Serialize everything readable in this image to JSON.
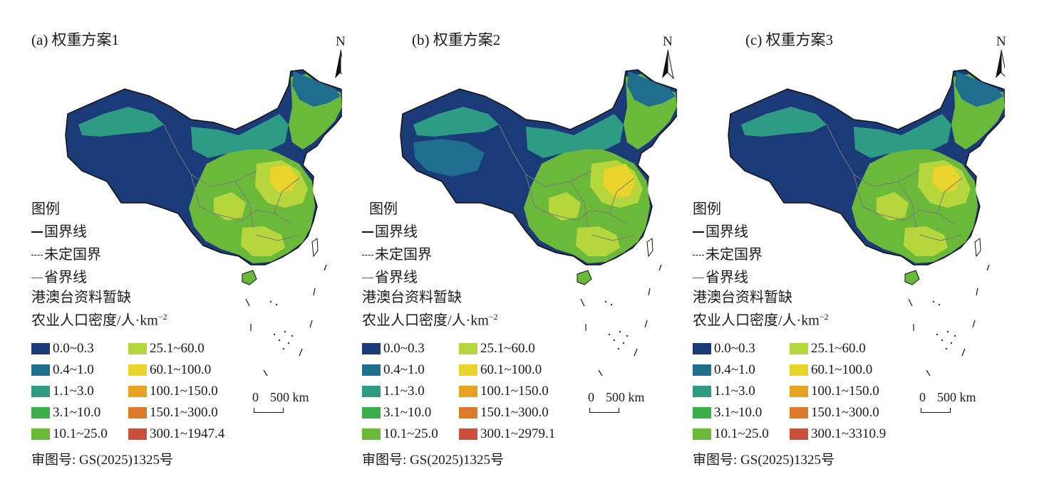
{
  "colors": {
    "c0": "#1b3a78",
    "c1": "#1f6e8e",
    "c2": "#2e9b85",
    "c3": "#3aae4b",
    "c4": "#6bb93b",
    "c5": "#b5d63c",
    "c6": "#ead32a",
    "c7": "#e8a221",
    "c8": "#dd7a2a",
    "c9": "#c8513c",
    "border": "#7a7a7a",
    "sea": "#1a1a1a"
  },
  "panels": [
    {
      "title": "(a) 权重方案1",
      "north": "N",
      "legend_title": "图例",
      "national_border": "国界线",
      "undetermined_border": "未定国界",
      "provincial_border": "省界线",
      "hk_note": "港澳台资料暂缺",
      "density_title": "农业人口密度/人·km",
      "density_sup": "−2",
      "classes": [
        "0.0~0.3",
        "0.4~1.0",
        "1.1~3.0",
        "3.1~10.0",
        "10.1~25.0",
        "25.1~60.0",
        "60.1~100.0",
        "100.1~150.0",
        "150.1~300.0",
        "300.1~1947.4"
      ],
      "scale_zero": "0",
      "scale_label": "500 km",
      "approval": "审图号: GS(2025)1325号"
    },
    {
      "title": "(b) 权重方案2",
      "north": "N",
      "legend_title": "图例",
      "national_border": "国界线",
      "undetermined_border": "未定国界",
      "provincial_border": "省界线",
      "hk_note": "港澳台资料暂缺",
      "density_title": "农业人口密度/人·km",
      "density_sup": "−2",
      "classes": [
        "0.0~0.3",
        "0.4~1.0",
        "1.1~3.0",
        "3.1~10.0",
        "10.1~25.0",
        "25.1~60.0",
        "60.1~100.0",
        "100.1~150.0",
        "150.1~300.0",
        "300.1~2979.1"
      ],
      "scale_zero": "0",
      "scale_label": "500 km",
      "approval": "审图号: GS(2025)1325号"
    },
    {
      "title": "(c) 权重方案3",
      "north": "N",
      "legend_title": "图例",
      "national_border": "国界线",
      "undetermined_border": "未定国界",
      "provincial_border": "省界线",
      "hk_note": "港澳台资料暂缺",
      "density_title": "农业人口密度/人·km",
      "density_sup": "−2",
      "classes": [
        "0.0~0.3",
        "0.4~1.0",
        "1.1~3.0",
        "3.1~10.0",
        "10.1~25.0",
        "25.1~60.0",
        "60.1~100.0",
        "100.1~150.0",
        "150.1~300.0",
        "300.1~3310.9"
      ],
      "scale_zero": "0",
      "scale_label": "500 km",
      "approval": "审图号: GS(2025)1325号"
    }
  ]
}
